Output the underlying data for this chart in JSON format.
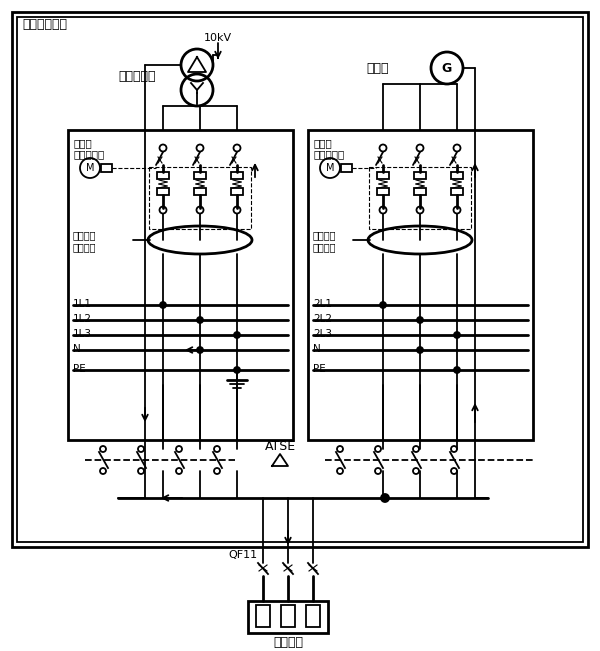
{
  "bg_color": "#ffffff",
  "lc": "#000000",
  "substation_label": "同一座配电所",
  "voltage_label": "10kV",
  "transformer_label": "电力变压器",
  "generator_label": "发电机",
  "left_panel_label1": "变压器",
  "left_panel_label2": "进线断路器",
  "right_panel_label1": "发电机",
  "right_panel_label2": "进线断路器",
  "ground_fault1": "接地故障",
  "ground_fault2": "电流检测",
  "atse_label": "ATSE",
  "qf_label": "QF11",
  "load_label": "用电设备",
  "left_bus": [
    "1L1",
    "1L2",
    "1L3",
    "N",
    "PE"
  ],
  "right_bus": [
    "2L1",
    "2L2",
    "2L3",
    "N",
    "PE"
  ],
  "lw1": 1.3,
  "lw2": 2.0,
  "lw3": 0.8
}
